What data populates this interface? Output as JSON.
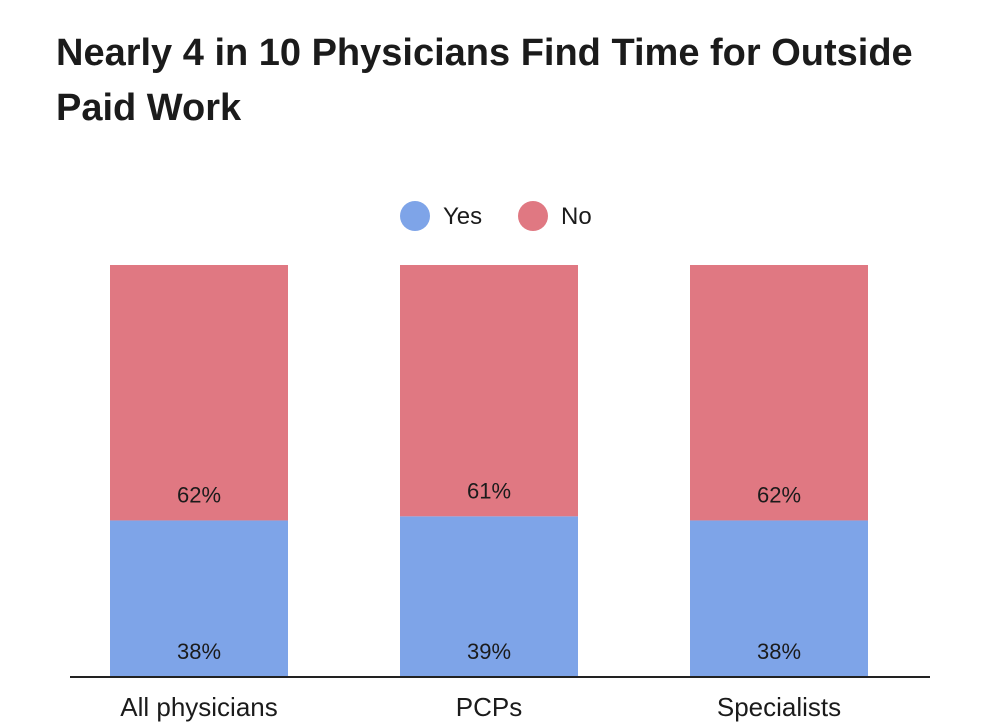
{
  "chart_data": {
    "type": "bar",
    "stacked": true,
    "title": "Nearly 4 in 10 Physicians Find Time for Outside Paid Work",
    "categories": [
      "All physicians",
      "PCPs",
      "Specialists"
    ],
    "series": [
      {
        "name": "Yes",
        "values": [
          38,
          39,
          38
        ],
        "labels": [
          "38%",
          "39%",
          "38%"
        ],
        "color": "#7ea4e8"
      },
      {
        "name": "No",
        "values": [
          62,
          61,
          62
        ],
        "labels": [
          "62%",
          "61%",
          "62%"
        ],
        "color": "#e07882"
      }
    ],
    "ylim": [
      0,
      100
    ],
    "grid": false,
    "legend_position": "top-center"
  }
}
